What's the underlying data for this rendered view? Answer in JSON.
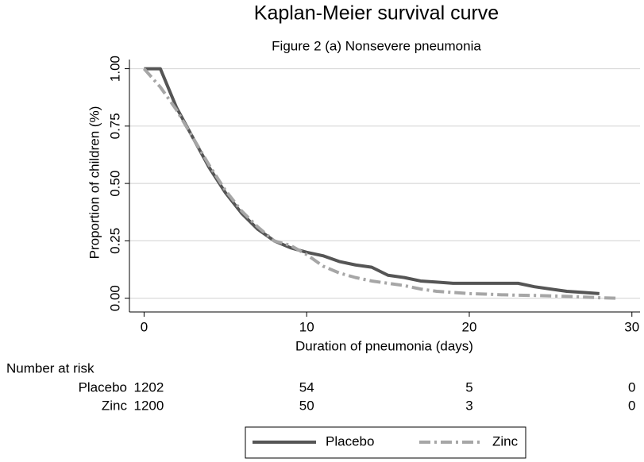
{
  "chart_data": {
    "type": "line",
    "title": "Kaplan-Meier survival curve",
    "subtitle": "Figure 2 (a) Nonsevere pneumonia",
    "x_label": "Duration of pneumonia (days)",
    "y_label": "Proportion of children (%)",
    "xlim": [
      -0.9,
      30.5
    ],
    "ylim": [
      -0.06,
      1.04
    ],
    "xticks": [
      0,
      10,
      20,
      30
    ],
    "yticks": [
      {
        "value": 0,
        "label": "0.00"
      },
      {
        "value": 0.25,
        "label": "0.25"
      },
      {
        "value": 0.5,
        "label": "0.50"
      },
      {
        "value": 0.75,
        "label": "0.75"
      },
      {
        "value": 1,
        "label": "1.00"
      }
    ],
    "grid": true,
    "legend": "bottom",
    "series": [
      {
        "name": "Placebo",
        "color": "#555555",
        "x": [
          0,
          1,
          2,
          3,
          4,
          5,
          6,
          7,
          8,
          9,
          10,
          11,
          12,
          13,
          14,
          15,
          16,
          17,
          18,
          19,
          20,
          21,
          22,
          23,
          24,
          25,
          26,
          27,
          28
        ],
        "values": [
          1,
          1,
          0.83,
          0.7,
          0.57,
          0.46,
          0.37,
          0.3,
          0.25,
          0.22,
          0.2,
          0.185,
          0.16,
          0.145,
          0.135,
          0.1,
          0.09,
          0.075,
          0.07,
          0.065,
          0.065,
          0.065,
          0.065,
          0.065,
          0.05,
          0.04,
          0.03,
          0.025,
          0.02
        ]
      },
      {
        "name": "Zinc",
        "color": "#a6a6a6",
        "x": [
          0,
          1,
          2,
          3,
          4,
          5,
          6,
          7,
          8,
          9,
          10,
          11,
          12,
          13,
          14,
          15,
          16,
          17,
          18,
          19,
          20,
          21,
          22,
          23,
          24,
          25,
          26,
          27,
          28,
          29
        ],
        "values": [
          1,
          0.92,
          0.82,
          0.7,
          0.58,
          0.47,
          0.38,
          0.31,
          0.25,
          0.23,
          0.19,
          0.14,
          0.11,
          0.09,
          0.075,
          0.065,
          0.055,
          0.04,
          0.03,
          0.025,
          0.02,
          0.018,
          0.015,
          0.013,
          0.012,
          0.01,
          0.008,
          0.005,
          0.002,
          0
        ]
      }
    ],
    "risk_table": {
      "title": "Number at risk",
      "rows": [
        {
          "name": "Placebo",
          "values": [
            1202,
            54,
            5,
            0
          ]
        },
        {
          "name": "Zinc",
          "values": [
            1200,
            50,
            3,
            0
          ]
        }
      ]
    }
  }
}
